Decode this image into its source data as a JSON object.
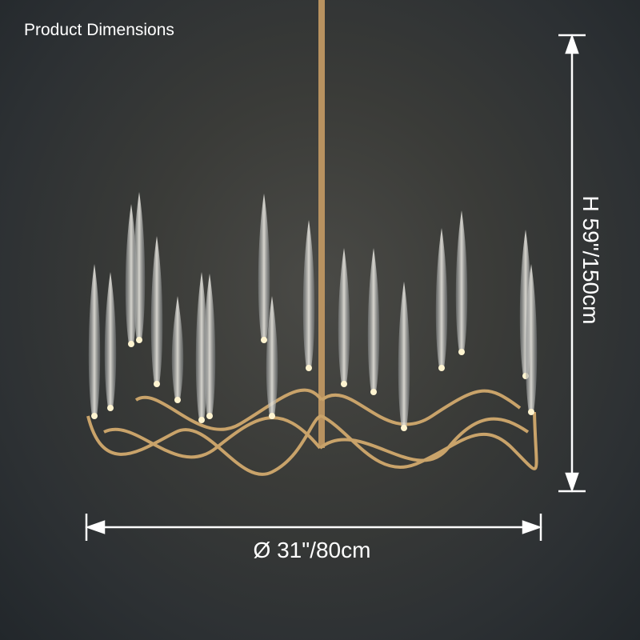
{
  "header": {
    "title": "Product Dimensions"
  },
  "dimensions": {
    "width_label": "Ø 31\"/80cm",
    "height_label": "H 59\"/150cm"
  },
  "colors": {
    "background": "#2c3033",
    "fixture_gold": "#c9a36a",
    "annotation": "#ffffff"
  }
}
